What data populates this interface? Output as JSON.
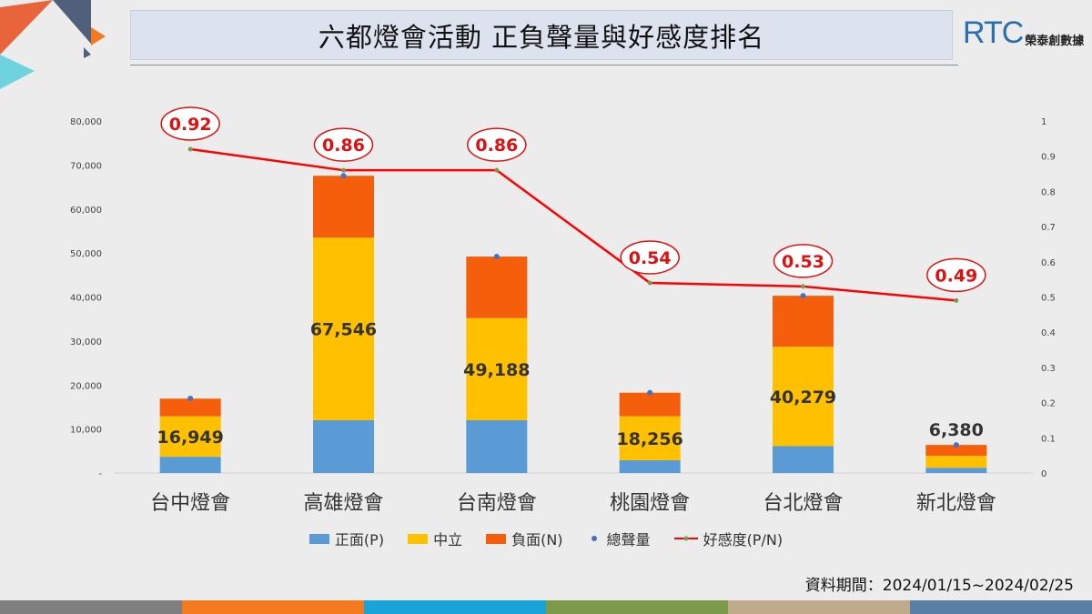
{
  "header": {
    "title": "六都燈會活動  正負聲量與好感度排名",
    "logo_mark": "RTC",
    "logo_name": "榮泰創數據"
  },
  "footer": {
    "period": "資料期間：2024/01/15~2024/02/25"
  },
  "colors": {
    "positive": "#5b9bd5",
    "neutral": "#ffc000",
    "negative": "#f55e0a",
    "total_dot": "#4472c4",
    "line": "#ff0000",
    "bottom_bar": [
      "#7f7f7f",
      "#f47a20",
      "#1aa3d9",
      "#7d9a4b",
      "#bfab8c",
      "#5a7fa6"
    ]
  },
  "chart_data": {
    "type": "bar",
    "stacked": true,
    "categories": [
      "台中燈會",
      "高雄燈會",
      "台南燈會",
      "桃園燈會",
      "台北燈會",
      "新北燈會"
    ],
    "series": [
      {
        "name": "正面(P)",
        "values": [
          3700,
          12000,
          12000,
          2900,
          6100,
          1200
        ]
      },
      {
        "name": "中立",
        "values": [
          9200,
          41500,
          23200,
          10000,
          22600,
          2700
        ]
      },
      {
        "name": "負面(N)",
        "values": [
          4000,
          14046,
          13988,
          5356,
          11579,
          2480
        ]
      }
    ],
    "total_series": {
      "name": "總聲量",
      "values": [
        16949,
        67546,
        49188,
        18256,
        40279,
        6380
      ]
    },
    "total_labels": [
      "16,949",
      "67,546",
      "49,188",
      "18,256",
      "40,279",
      "6,380"
    ],
    "line_series": {
      "name": "好感度(P/N)",
      "values": [
        0.92,
        0.86,
        0.86,
        0.54,
        0.53,
        0.49
      ]
    },
    "line_labels": [
      "0.92",
      "0.86",
      "0.86",
      "0.54",
      "0.53",
      "0.49"
    ],
    "y_left": {
      "range": [
        0,
        80000
      ],
      "ticks": [
        0,
        10000,
        20000,
        30000,
        40000,
        50000,
        60000,
        70000,
        80000
      ],
      "tick_labels": [
        "-",
        "10,000",
        "20,000",
        "30,000",
        "40,000",
        "50,000",
        "60,000",
        "70,000",
        "80,000"
      ]
    },
    "y_right": {
      "range": [
        0,
        1
      ],
      "ticks": [
        0,
        0.1,
        0.2,
        0.3,
        0.4,
        0.5,
        0.6,
        0.7,
        0.8,
        0.9,
        1
      ],
      "tick_labels": [
        "0",
        "0.1",
        "0.2",
        "0.3",
        "0.4",
        "0.5",
        "0.6",
        "0.7",
        "0.8",
        "0.9",
        "1"
      ]
    },
    "grid": false,
    "legend_position": "bottom"
  }
}
